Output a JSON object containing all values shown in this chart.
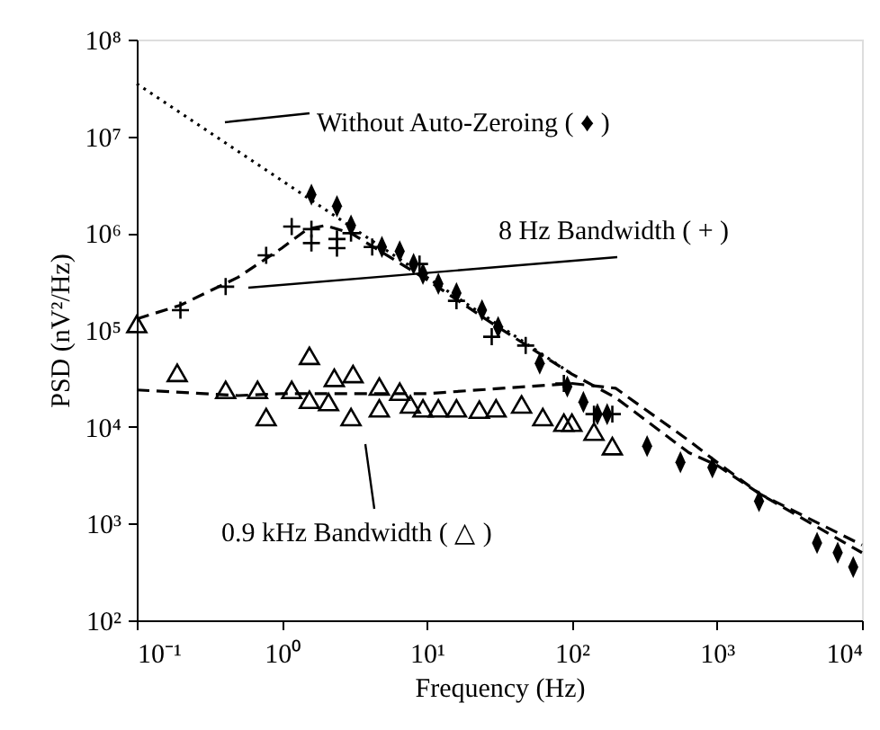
{
  "chart_data": {
    "type": "scatter",
    "xlabel": "Frequency (Hz)",
    "ylabel": "PSD (nV²/Hz)",
    "log": "xy",
    "grid": false,
    "xlim": [
      0.1,
      10000
    ],
    "ylim": [
      100,
      100000000
    ],
    "xticks": [
      {
        "value": 0.1,
        "label": "10⁻¹"
      },
      {
        "value": 1,
        "label": "10⁰"
      },
      {
        "value": 10,
        "label": "10¹"
      },
      {
        "value": 100,
        "label": "10²"
      },
      {
        "value": 1000,
        "label": "10³"
      },
      {
        "value": 10000,
        "label": "10⁴"
      }
    ],
    "yticks": [
      {
        "value": 100,
        "label": "10²"
      },
      {
        "value": 1000,
        "label": "10³"
      },
      {
        "value": 10000,
        "label": "10⁴"
      },
      {
        "value": 100000,
        "label": "10⁵"
      },
      {
        "value": 1000000,
        "label": "10⁶"
      },
      {
        "value": 10000000,
        "label": "10⁷"
      },
      {
        "value": 100000000,
        "label": "10⁸"
      }
    ],
    "series": [
      {
        "type": "line",
        "line_style": "dotted",
        "color": "#000000",
        "x": [
          0.1,
          100
        ],
        "values": [
          35000000,
          35000
        ]
      },
      {
        "type": "line",
        "line_style": "dashed",
        "color": "#000000",
        "x": [
          0.1,
          0.2,
          0.5,
          1,
          1.5,
          2,
          3,
          10,
          30,
          100,
          200,
          640,
          1000,
          2000,
          10000
        ],
        "values": [
          130000,
          180000,
          350000,
          700000,
          1100000,
          1200000,
          1000000,
          330000,
          110000,
          35000,
          20000,
          5400,
          4000,
          2000,
          500
        ]
      },
      {
        "type": "line",
        "line_style": "dashed",
        "color": "#000000",
        "x": [
          0.1,
          0.5,
          1,
          10,
          100,
          200,
          640,
          1000,
          2000,
          10000
        ],
        "values": [
          24000,
          21000,
          22000,
          22000,
          28000,
          25000,
          7200,
          4300,
          2000,
          600
        ]
      },
      {
        "marker": "diamond",
        "color": "#000000",
        "x": [
          1.6,
          2.4,
          3.0,
          4.9,
          6.5,
          8.1,
          9.4,
          12,
          16,
          24,
          31,
          60,
          93,
          120,
          150,
          175,
          330,
          560,
          930,
          1950,
          4900,
          6800,
          8700
        ],
        "values": [
          2500000,
          1900000,
          1200000,
          720000,
          650000,
          480000,
          380000,
          300000,
          240000,
          160000,
          107000,
          45000,
          26000,
          18000,
          13500,
          13500,
          6300,
          4300,
          3800,
          1700,
          630,
          500,
          355
        ]
      },
      {
        "marker": "cross",
        "color": "#000000",
        "x": [
          0.2,
          0.41,
          0.78,
          1.17,
          1.6,
          1.6,
          2.4,
          2.4,
          3.0,
          4.2,
          8.9,
          16,
          28,
          48,
          88,
          142,
          190
        ],
        "values": [
          160000,
          280000,
          590000,
          1170000,
          790000,
          1100000,
          870000,
          700000,
          1000000,
          720000,
          480000,
          200000,
          85000,
          69000,
          28000,
          13500,
          13500
        ]
      },
      {
        "marker": "triangle",
        "color": "#000000",
        "x": [
          0.1,
          0.19,
          0.41,
          0.68,
          0.78,
          1.17,
          1.55,
          1.55,
          2.1,
          2.3,
          3.1,
          3.0,
          4.7,
          4.7,
          6.5,
          7.7,
          9.4,
          12,
          16,
          23,
          30,
          45,
          63,
          88,
          100,
          142,
          190
        ],
        "values": [
          115000,
          36000,
          24000,
          24000,
          12600,
          24000,
          54000,
          19000,
          18000,
          32000,
          35000,
          12600,
          26000,
          15500,
          23000,
          17000,
          15500,
          15500,
          15500,
          15000,
          15500,
          17000,
          12600,
          11000,
          11000,
          8900,
          6300
        ]
      }
    ],
    "annotations": [
      "Without Auto-Zeroing ( ♦ )",
      "8 Hz Bandwidth ( + )",
      "0.9 kHz Bandwidth ( △ )"
    ]
  }
}
